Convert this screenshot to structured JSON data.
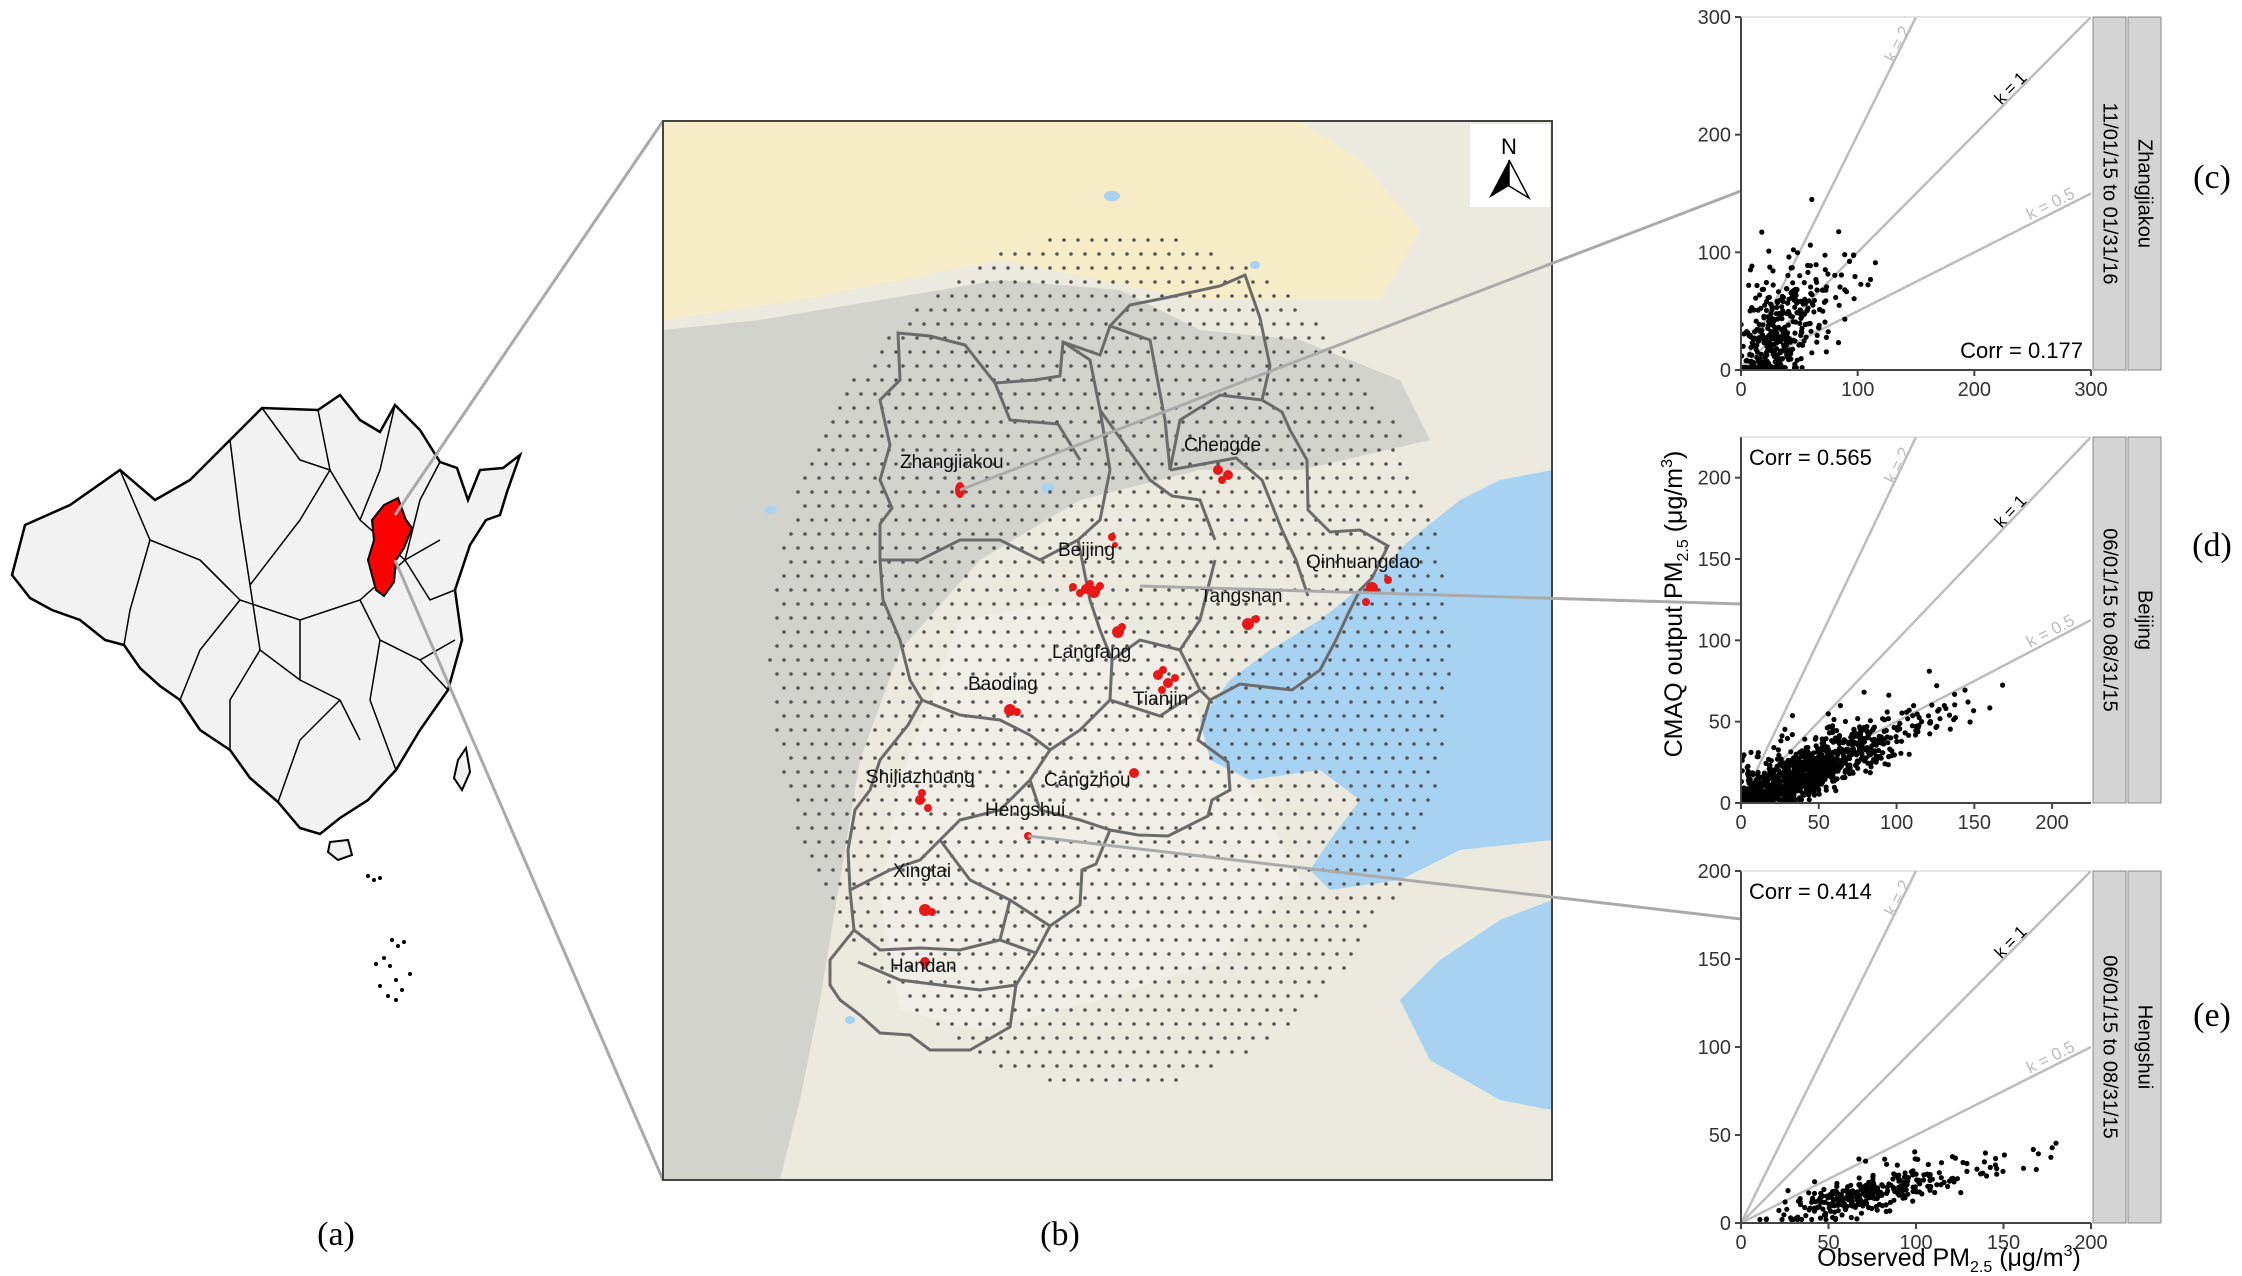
{
  "panels": {
    "a": {
      "label": "(a)"
    },
    "b": {
      "label": "(b)",
      "north": "N",
      "cities": [
        {
          "name": "Zhangjiakou"
        },
        {
          "name": "Chengde"
        },
        {
          "name": "Beijing"
        },
        {
          "name": "Qinhuangdao"
        },
        {
          "name": "Tangshan"
        },
        {
          "name": "Langfang"
        },
        {
          "name": "Tianjin"
        },
        {
          "name": "Baoding"
        },
        {
          "name": "Shijiazhuang"
        },
        {
          "name": "Cangzhou"
        },
        {
          "name": "Hengshui"
        },
        {
          "name": "Xingtai"
        },
        {
          "name": "Handan"
        }
      ]
    },
    "c": {
      "label": "(c)"
    },
    "d": {
      "label": "(d)"
    },
    "e": {
      "label": "(e)"
    }
  },
  "colors": {
    "province_highlight": "#ff0000",
    "land": "#f3efe3",
    "water": "#a8d2f2",
    "sites": "#e81818",
    "grid_points": "#555555",
    "ref_lines": "#bdbdbd",
    "strip": "#d4d4d4"
  },
  "axes": {
    "ylabel": "CMAQ output PM",
    "ylabel_sub": "2.5",
    "ylabel_unit": " (μg/m",
    "ylabel_sup": "3",
    "ylabel_close": ")",
    "xlabel": "Observed PM",
    "xlabel_sub": "2.5",
    "xlabel_unit": " (μg/m",
    "xlabel_sup": "3",
    "xlabel_close": ")"
  },
  "chart_data": [
    {
      "id": "c",
      "type": "scatter",
      "strip_city": "Zhangjiakou",
      "strip_period": "11/01/15 to 01/31/16",
      "corr_text": "Corr = 0.177",
      "xlim": [
        0,
        300
      ],
      "ylim": [
        0,
        300
      ],
      "xticks": [
        "0",
        "100",
        "200",
        "300"
      ],
      "yticks": [
        "0",
        "100",
        "200",
        "300"
      ],
      "ref_lines": [
        {
          "label": "k = 2",
          "k": 2,
          "label_dark": false
        },
        {
          "label": "k = 1",
          "k": 1,
          "label_dark": true
        },
        {
          "label": "k = 0.5",
          "k": 0.5,
          "label_dark": false
        }
      ],
      "points": {
        "n": 420,
        "seed": 7,
        "x_mode": 30,
        "x_spread": 22,
        "x_max": 185,
        "slope": 0.85,
        "noise": 45,
        "y_max": 290
      }
    },
    {
      "id": "d",
      "type": "scatter",
      "strip_city": "Beijing",
      "strip_period": "06/01/15 to 08/31/15",
      "corr_text": "Corr = 0.565",
      "xlim": [
        0,
        225
      ],
      "ylim": [
        0,
        225
      ],
      "xticks": [
        "0",
        "50",
        "100",
        "150",
        "200"
      ],
      "yticks": [
        "0",
        "50",
        "100",
        "150",
        "200"
      ],
      "ref_lines": [
        {
          "label": "k = 2",
          "k": 2,
          "label_dark": false
        },
        {
          "label": "k = 1",
          "k": 1,
          "label_dark": true
        },
        {
          "label": "k = 0.5",
          "k": 0.5,
          "label_dark": false
        }
      ],
      "points": {
        "n": 1100,
        "seed": 11,
        "x_mode": 35,
        "x_spread": 30,
        "x_max": 215,
        "slope": 0.42,
        "noise": 14,
        "y_max": 90
      }
    },
    {
      "id": "e",
      "type": "scatter",
      "strip_city": "Hengshui",
      "strip_period": "06/01/15 to 08/31/15",
      "corr_text": "Corr = 0.414",
      "xlim": [
        0,
        200
      ],
      "ylim": [
        0,
        200
      ],
      "xticks": [
        "0",
        "50",
        "100",
        "150",
        "200"
      ],
      "yticks": [
        "0",
        "50",
        "100",
        "150",
        "200"
      ],
      "ref_lines": [
        {
          "label": "k = 2",
          "k": 2,
          "label_dark": false
        },
        {
          "label": "k = 1",
          "k": 1,
          "label_dark": true
        },
        {
          "label": "k = 0.5",
          "k": 0.5,
          "label_dark": false
        }
      ],
      "points": {
        "n": 330,
        "seed": 23,
        "x_mode": 70,
        "x_spread": 28,
        "x_max": 180,
        "slope": 0.22,
        "noise": 10,
        "y_max": 80
      }
    }
  ]
}
